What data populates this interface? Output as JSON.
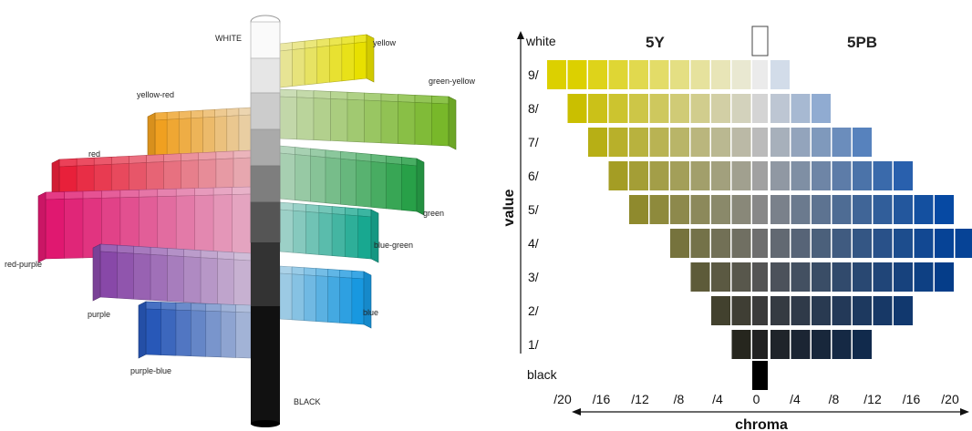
{
  "tree": {
    "labels": {
      "white": "WHITE",
      "black": "BLACK",
      "yellow": "yellow",
      "green_yellow": "green-yellow",
      "yellow_red": "yellow-red",
      "red": "red",
      "green": "green",
      "red_purple": "red-purple",
      "blue_green": "blue-green",
      "purple": "purple",
      "blue": "blue",
      "purple_blue": "purple-blue"
    },
    "colors": {
      "yellow": "#e8e000",
      "green_yellow": "#78b82a",
      "yellow_red": "#f0a020",
      "red": "#e8203a",
      "green": "#28a048",
      "red_purple": "#e01870",
      "blue_green": "#18a890",
      "purple": "#8848a8",
      "blue": "#1898e0",
      "purple_blue": "#2858b8"
    }
  },
  "chart": {
    "hue_left": "5Y",
    "hue_right": "5PB",
    "value_axis_title": "value",
    "chroma_axis_title": "chroma",
    "white_label": "white",
    "black_label": "black",
    "value_labels": [
      "9/",
      "8/",
      "7/",
      "6/",
      "5/",
      "4/",
      "3/",
      "2/",
      "1/"
    ],
    "chroma_labels": [
      "/20",
      "/16",
      "/12",
      "/8",
      "/4",
      "0",
      "/4",
      "/8",
      "/12",
      "/16",
      "/20"
    ],
    "left_hue_color": "#dcd000",
    "right_hue_color": "#0860d8",
    "rows": [
      {
        "value": "9/",
        "left_chips": 10,
        "right_chips": 1
      },
      {
        "value": "8/",
        "left_chips": 9,
        "right_chips": 3
      },
      {
        "value": "7/",
        "left_chips": 8,
        "right_chips": 5
      },
      {
        "value": "6/",
        "left_chips": 7,
        "right_chips": 7
      },
      {
        "value": "5/",
        "left_chips": 6,
        "right_chips": 9
      },
      {
        "value": "4/",
        "left_chips": 4,
        "right_chips": 10
      },
      {
        "value": "3/",
        "left_chips": 3,
        "right_chips": 9
      },
      {
        "value": "2/",
        "left_chips": 2,
        "right_chips": 7
      },
      {
        "value": "1/",
        "left_chips": 1,
        "right_chips": 5
      }
    ]
  }
}
